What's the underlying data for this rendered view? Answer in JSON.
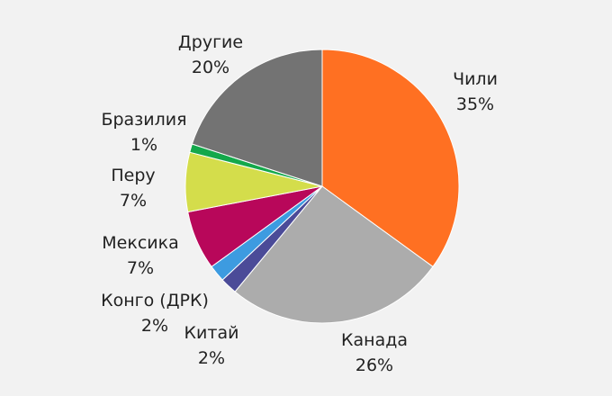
{
  "chart_data": {
    "type": "pie",
    "title": "",
    "slices": [
      {
        "label": "Чили",
        "value": 35,
        "value_label": "35%",
        "color": "#ff7022"
      },
      {
        "label": "Канада",
        "value": 26,
        "value_label": "26%",
        "color": "#acacac"
      },
      {
        "label": "Китай",
        "value": 2,
        "value_label": "2%",
        "color": "#4b4b98"
      },
      {
        "label": "Конго (ДРК)",
        "value": 2,
        "value_label": "2%",
        "color": "#3d9be0"
      },
      {
        "label": "Мексика",
        "value": 7,
        "value_label": "7%",
        "color": "#b8075a"
      },
      {
        "label": "Перу",
        "value": 7,
        "value_label": "7%",
        "color": "#d4dd4b"
      },
      {
        "label": "Бразилия",
        "value": 1,
        "value_label": "1%",
        "color": "#14a84b"
      },
      {
        "label": "Другие",
        "value": 20,
        "value_label": "20%",
        "color": "#737373"
      }
    ]
  }
}
